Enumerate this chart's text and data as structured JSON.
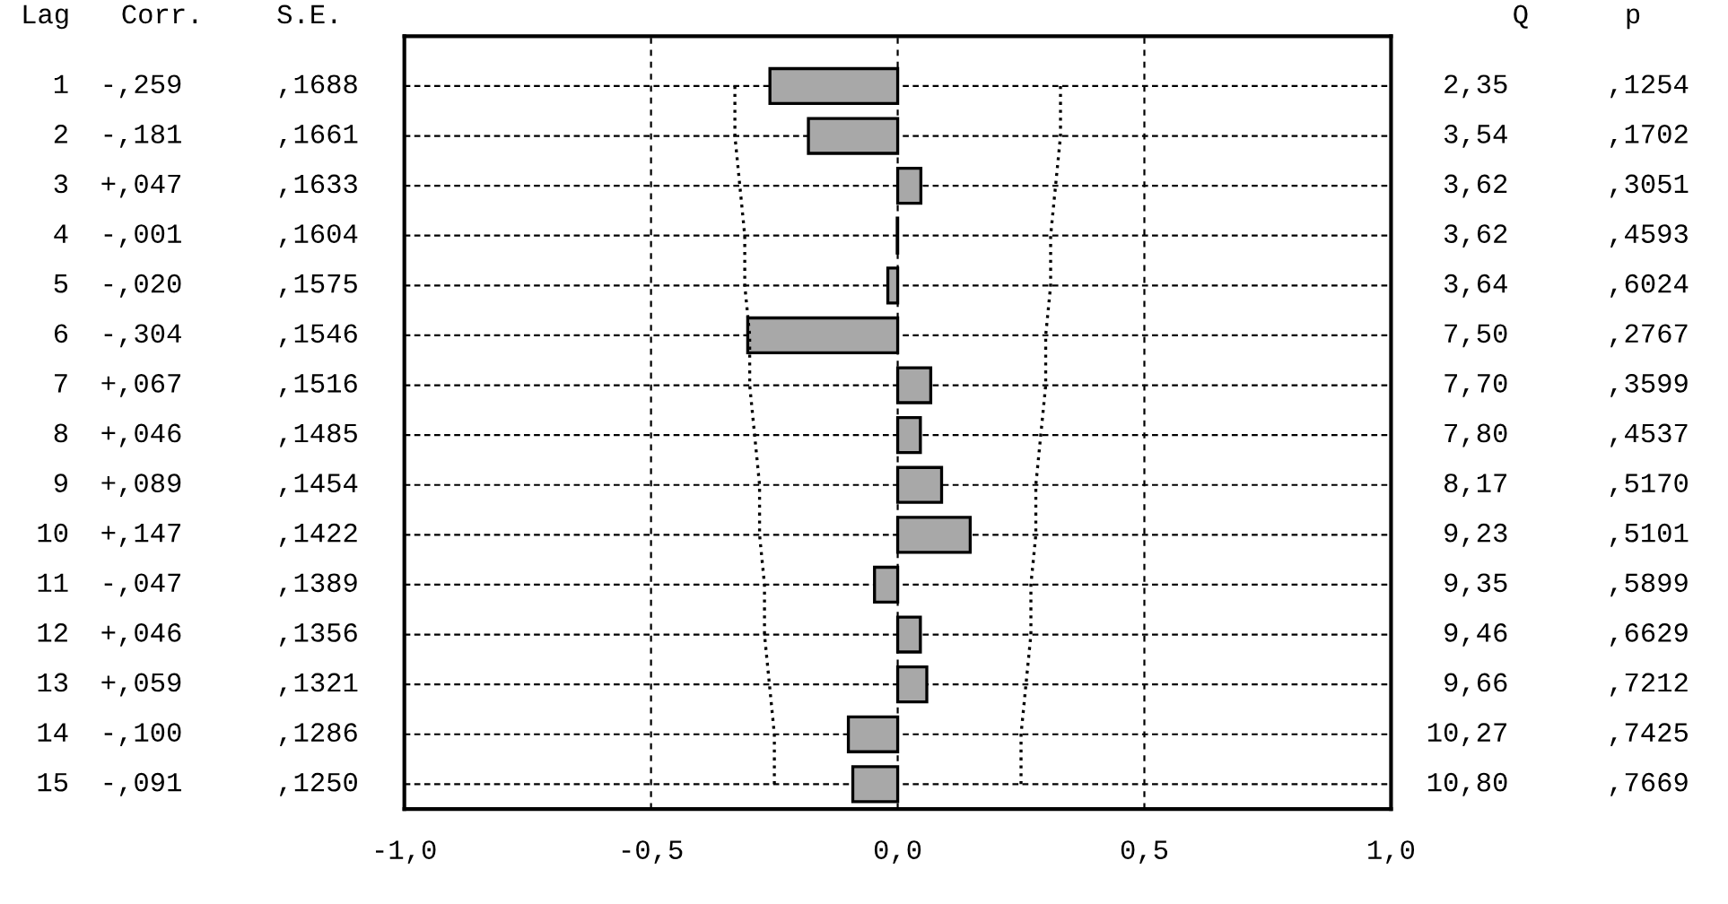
{
  "chart_data": {
    "type": "bar",
    "orientation": "horizontal",
    "categories": [
      null,
      null,
      null,
      null,
      null,
      null,
      null,
      null,
      null,
      null,
      null,
      null,
      null,
      null,
      null
    ],
    "series": [
      {
        "type": "bar",
        "color": "#a8a8a8",
        "values": [
          -0.259,
          -0.181,
          0.047,
          -0.001,
          -0.02,
          -0.304,
          0.067,
          0.046,
          0.089,
          0.147,
          -0.047,
          0.046,
          0.059,
          -0.1,
          -0.091
        ]
      },
      {
        "type": "line",
        "color": "#000000",
        "line_style": "dotted",
        "values": [
          0.33,
          0.33,
          0.32,
          0.31,
          0.31,
          0.3,
          0.3,
          0.29,
          0.28,
          0.28,
          0.27,
          0.27,
          0.26,
          0.25,
          0.25
        ]
      },
      {
        "type": "line",
        "color": "#000000",
        "line_style": "dotted",
        "values": [
          -0.33,
          -0.33,
          -0.32,
          -0.31,
          -0.31,
          -0.3,
          -0.3,
          -0.29,
          -0.28,
          -0.28,
          -0.27,
          -0.27,
          -0.26,
          -0.25,
          -0.25
        ]
      }
    ],
    "xlim": [
      -1.0,
      1.0
    ],
    "xticks": [
      {
        "value": -1.0,
        "label": "-1,0"
      },
      {
        "value": -0.5,
        "label": "-0,5"
      },
      {
        "value": 0.0,
        "label": "0,0"
      },
      {
        "value": 0.5,
        "label": "0,5"
      },
      {
        "value": 1.0,
        "label": "1,0"
      }
    ],
    "grid": true,
    "annotations": [
      "Lag",
      "Corr.",
      "S.E.",
      "Q",
      "p",
      "1",
      "-,259",
      ",1688",
      "2,35",
      ",1254",
      "2",
      "-,181",
      ",1661",
      "3,54",
      ",1702",
      "3",
      "+,047",
      ",1633",
      "3,62",
      ",3051",
      "4",
      "-,001",
      ",1604",
      "3,62",
      ",4593",
      "5",
      "-,020",
      ",1575",
      "3,64",
      ",6024",
      "6",
      "-,304",
      ",1546",
      "7,50",
      ",2767",
      "7",
      "+,067",
      ",1516",
      "7,70",
      ",3599",
      "8",
      "+,046",
      ",1485",
      "7,80",
      ",4537",
      "9",
      "+,089",
      ",1454",
      "8,17",
      ",5170",
      "10",
      "+,147",
      ",1422",
      "9,23",
      ",5101",
      "11",
      "-,047",
      ",1389",
      "9,35",
      ",5899",
      "12",
      "+,046",
      ",1356",
      "9,46",
      ",6629",
      "13",
      "+,059",
      ",1321",
      "9,66",
      ",7212",
      "14",
      "-,100",
      ",1286",
      "10,27",
      ",7425",
      "15",
      "-,091",
      ",1250",
      "10,80",
      ",7669"
    ]
  }
}
